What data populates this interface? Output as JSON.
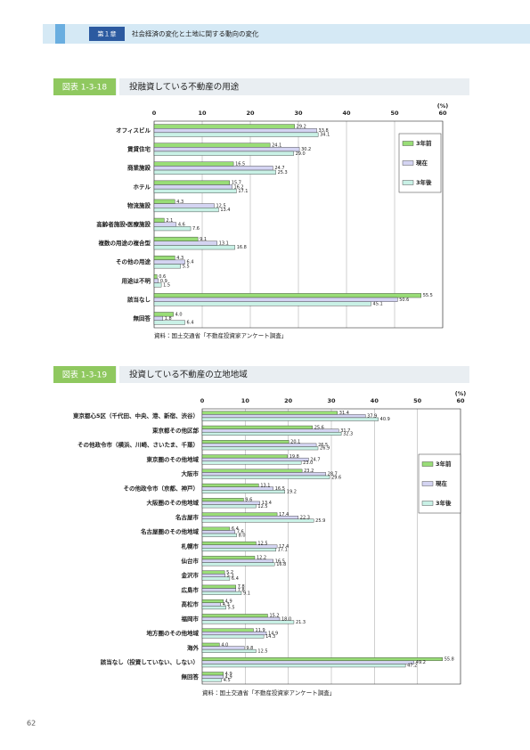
{
  "header": {
    "chapter": "第１章",
    "title": "社会経済の変化と土地に関する動向の変化"
  },
  "page_number": "62",
  "chart_data": [
    {
      "type": "hbar",
      "figure_label": "図表 1-3-18",
      "title": "投融資している不動産の用途",
      "unit": "(%)",
      "source": "資料：国土交通省「不動産投資家アンケート調査」",
      "categories": [
        "オフィスビル",
        "賃貸住宅",
        "商業施設",
        "ホテル",
        "物流施設",
        "高齢者施設・医療施設",
        "複数の用途の複合型",
        "その他の用途",
        "用途は不明",
        "該当なし",
        "無回答"
      ],
      "series": [
        {
          "name": "3年前",
          "color": "#99dd77",
          "values": [
            29.2,
            24.1,
            16.5,
            15.7,
            4.3,
            2.1,
            9.1,
            4.3,
            0.6,
            55.5,
            4.0
          ],
          "value_labels": [
            "29.2",
            "24.1",
            "16.5",
            "15.7",
            "4.3",
            "2.1",
            "9.1",
            "4.3",
            "0.6",
            "55.5",
            "4.0"
          ]
        },
        {
          "name": "現在",
          "color": "#d4d4f2",
          "values": [
            33.8,
            30.2,
            24.7,
            16.2,
            12.5,
            4.6,
            13.1,
            6.4,
            0.9,
            50.6,
            1.8
          ],
          "value_labels": [
            "33.8",
            "30.2",
            "24.7",
            "16.2",
            "12.5",
            "4.6",
            "13.1",
            "6.4",
            "0.9",
            "50.6",
            "1.8"
          ]
        },
        {
          "name": "3年後",
          "color": "#c9f1e6",
          "values": [
            34.1,
            29.0,
            25.3,
            17.1,
            13.4,
            7.6,
            16.8,
            5.5,
            1.5,
            45.1,
            6.4
          ],
          "value_labels": [
            "34.1",
            "29.0",
            "25.3",
            "17.1",
            "13.4",
            "7.6",
            "16.8",
            "5.5",
            "1.5",
            "45.1",
            "6.4"
          ]
        }
      ],
      "xlim": [
        0,
        60
      ],
      "xticks": [
        0,
        10,
        20,
        30,
        40,
        50,
        60
      ],
      "grid": true,
      "legend": "upper-right"
    },
    {
      "type": "hbar",
      "figure_label": "図表 1-3-19",
      "title": "投資している不動産の立地地域",
      "unit": "(%)",
      "source": "資料：国土交通省「不動産投資家アンケート調査」",
      "categories": [
        "東京都心5区（千代田、中央、港、新宿、渋谷）",
        "東京都その他区部",
        "その他政令市（横浜、川崎、さいたま、千葉）",
        "東京圏のその他地域",
        "大阪市",
        "その他政令市（京都、神戸）",
        "大阪圏のその他地域",
        "名古屋市",
        "名古屋圏のその他地域",
        "札幌市",
        "仙台市",
        "金沢市",
        "広島市",
        "高松市",
        "福岡市",
        "地方圏のその他地域",
        "海外",
        "該当なし（投資していない、しない）",
        "無回答"
      ],
      "series": [
        {
          "name": "3年前",
          "color": "#99dd77",
          "values": [
            31.4,
            25.6,
            20.1,
            19.8,
            23.2,
            13.1,
            9.6,
            17.4,
            6.4,
            12.5,
            12.2,
            5.2,
            7.8,
            4.9,
            15.2,
            11.9,
            4.0,
            55.8,
            4.9
          ],
          "value_labels": [
            "31.4",
            "25.6",
            "20.1",
            "19.8",
            "23.2",
            "13.1",
            "9.6",
            "17.4",
            "6.4",
            "12.5",
            "12.2",
            "5.2",
            "7.8",
            "4.9",
            "15.2",
            "11.9",
            "4.0",
            "55.8",
            "4.9"
          ]
        },
        {
          "name": "現在",
          "color": "#d4d4f2",
          "values": [
            37.9,
            31.7,
            26.5,
            24.7,
            28.7,
            16.5,
            13.4,
            22.3,
            7.6,
            17.4,
            16.5,
            5.3,
            7.8,
            4.3,
            18.0,
            14.9,
            9.8,
            49.2,
            4.9
          ],
          "value_labels": [
            "37.9",
            "31.7",
            "26.5",
            "24.7",
            "28.7",
            "16.5",
            "13.4",
            "22.3",
            "7.6",
            "17.4",
            "16.5",
            "5.3",
            "7.8",
            "4.3",
            "18.0",
            "14.9",
            "9.8",
            "49.2",
            "4.9"
          ]
        },
        {
          "name": "3年後",
          "color": "#c9f1e6",
          "values": [
            40.9,
            32.3,
            26.9,
            23.0,
            29.6,
            19.2,
            12.5,
            25.9,
            8.0,
            17.1,
            16.8,
            6.4,
            9.1,
            5.5,
            21.3,
            14.3,
            12.5,
            47.2,
            4.5
          ],
          "value_labels": [
            "40.9",
            "32.3",
            "26.9",
            "23.0",
            "29.6",
            "19.2",
            "12.5",
            "25.9",
            "8.0",
            "17.1",
            "16.8",
            "6.4",
            "9.1",
            "5.5",
            "21.3",
            "14.3",
            "12.5",
            "47.2",
            "4.5"
          ]
        }
      ],
      "xlim": [
        0,
        60
      ],
      "xticks": [
        0,
        10,
        20,
        30,
        40,
        50,
        60
      ],
      "grid": true,
      "legend": "upper-right"
    }
  ]
}
